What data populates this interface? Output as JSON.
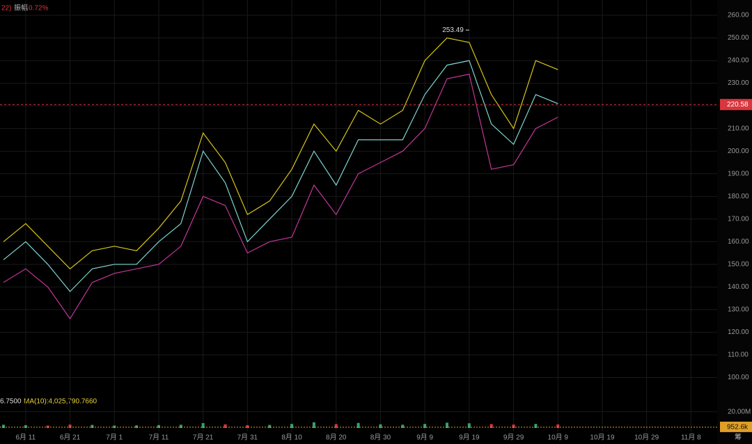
{
  "header": {
    "prefix": "22)",
    "amplitude_label": "振幅",
    "amplitude": "0.72%",
    "volume_prefix": "6.7500",
    "volume_ma": "MA(10):4,025,790.7660",
    "footer": "筹"
  },
  "chart_data": {
    "type": "line",
    "categories": [
      null,
      "6月 11",
      null,
      "6月 21",
      null,
      "7月 1",
      null,
      "7月 11",
      null,
      "7月 21",
      null,
      "7月 31",
      null,
      "8月 10",
      null,
      "8月 20",
      null,
      "8月 30",
      null,
      "9月 9",
      null,
      "9月 19",
      null,
      "9月 29",
      null,
      "10月 9",
      null,
      "10月 19",
      null,
      "10月 29",
      null,
      "11月 8"
    ],
    "series": [
      {
        "color": "#7fd6cf",
        "values": [
          152,
          160,
          150,
          138,
          148,
          150,
          150,
          160,
          168,
          200,
          186,
          160,
          170,
          180,
          200,
          185,
          205,
          205,
          205,
          225,
          238,
          240,
          212,
          203,
          225,
          221,
          null,
          null,
          null,
          null,
          null,
          null
        ]
      },
      {
        "color": "#d8c51c",
        "values": [
          160,
          168,
          158,
          148,
          156,
          158,
          156,
          166,
          178,
          208,
          195,
          172,
          178,
          192,
          212,
          200,
          218,
          212,
          218,
          240,
          250,
          248,
          225,
          210,
          240,
          236,
          null,
          null,
          null,
          null,
          null,
          null
        ]
      },
      {
        "color": "#c4369b",
        "values": [
          142,
          148,
          140,
          126,
          142,
          146,
          148,
          150,
          158,
          180,
          176,
          155,
          160,
          162,
          185,
          172,
          190,
          195,
          200,
          210,
          232,
          234,
          192,
          194,
          210,
          215,
          null,
          null,
          null,
          null,
          null,
          null
        ]
      }
    ],
    "ylim": [
      94,
      264
    ],
    "yticks": [
      {
        "value": 100,
        "label": "100.00"
      },
      {
        "value": 110,
        "label": "110.00"
      },
      {
        "value": 120,
        "label": "120.00"
      },
      {
        "value": 130,
        "label": "130.00"
      },
      {
        "value": 140,
        "label": "140.00"
      },
      {
        "value": 150,
        "label": "150.00"
      },
      {
        "value": 160,
        "label": "160.00"
      },
      {
        "value": 170,
        "label": "170.00"
      },
      {
        "value": 180,
        "label": "180.00"
      },
      {
        "value": 190,
        "label": "190.00"
      },
      {
        "value": 200,
        "label": "200.00"
      },
      {
        "value": 210,
        "label": "210.00"
      },
      {
        "value": 220,
        "label": "220.00"
      },
      {
        "value": 230,
        "label": "230.00"
      },
      {
        "value": 240,
        "label": "240.00"
      },
      {
        "value": 250,
        "label": "250.00"
      },
      {
        "value": 260,
        "label": "260.00"
      }
    ],
    "grid": true,
    "last_price": 220.58,
    "last_price_color": "#d9363e",
    "high_marker": 253.49,
    "volume": {
      "color_up": "#2ea37a",
      "color_down": "#d9363e",
      "values": [
        4000000,
        3500000,
        3000000,
        4200000,
        3800000,
        3000000,
        3200000,
        3600000,
        4000000,
        6000000,
        4500000,
        3500000,
        3800000,
        5000000,
        7000000,
        4800000,
        6200000,
        4500000,
        4000000,
        5000000,
        6500000,
        5800000,
        4800000,
        4200000,
        5000000,
        4400000,
        null,
        null,
        null,
        null,
        null,
        null
      ],
      "ylim": [
        0,
        30000000
      ],
      "yticks": [
        {
          "value": 20000000,
          "label": "20.00M"
        }
      ],
      "last_volume": {
        "value": 952600,
        "label": "952.6k"
      },
      "last_volume_color": "#e0a028"
    }
  }
}
